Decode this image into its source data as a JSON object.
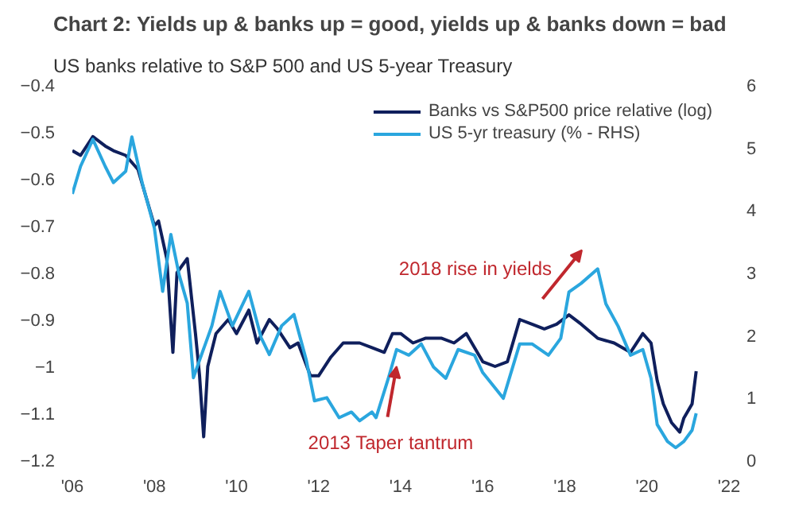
{
  "chart_data": {
    "type": "line",
    "title": "Chart 2: Yields up & banks up = good, yields up & banks down = bad",
    "subtitle": "US banks relative to S&P 500 and US 5-year Treasury",
    "xlim": [
      2006,
      2022
    ],
    "xticks": [
      {
        "value": 2006,
        "label": "'06"
      },
      {
        "value": 2008,
        "label": "'08"
      },
      {
        "value": 2010,
        "label": "'10"
      },
      {
        "value": 2012,
        "label": "'12"
      },
      {
        "value": 2014,
        "label": "'14"
      },
      {
        "value": 2016,
        "label": "'16"
      },
      {
        "value": 2018,
        "label": "'18"
      },
      {
        "value": 2020,
        "label": "'20"
      },
      {
        "value": 2022,
        "label": "'22"
      }
    ],
    "ylim": [
      -1.2,
      -0.4
    ],
    "yticks": [
      -1.2,
      -1.1,
      -1,
      -0.9,
      -0.8,
      -0.7,
      -0.6,
      -0.5,
      -0.4
    ],
    "y2lim": [
      0,
      6
    ],
    "y2ticks": [
      0,
      1,
      2,
      3,
      4,
      5,
      6
    ],
    "grid": false,
    "legend": "top right",
    "line_style": "solid",
    "marker": "none",
    "series": [
      {
        "name": "Banks vs S&P500 price relative (log)",
        "color": "#0f1f5c",
        "x": [
          2006.0,
          2006.2,
          2006.5,
          2006.8,
          2007.0,
          2007.3,
          2007.6,
          2007.8,
          2008.0,
          2008.1,
          2008.3,
          2008.45,
          2008.55,
          2008.8,
          2009.0,
          2009.1,
          2009.2,
          2009.3,
          2009.5,
          2009.8,
          2010.0,
          2010.3,
          2010.5,
          2010.8,
          2011.0,
          2011.3,
          2011.5,
          2011.8,
          2012.0,
          2012.3,
          2012.6,
          2013.0,
          2013.3,
          2013.6,
          2013.8,
          2014.0,
          2014.3,
          2014.6,
          2015.0,
          2015.3,
          2015.6,
          2016.0,
          2016.3,
          2016.6,
          2016.9,
          2017.2,
          2017.5,
          2017.8,
          2018.1,
          2018.4,
          2018.8,
          2019.2,
          2019.6,
          2019.9,
          2020.1,
          2020.25,
          2020.4,
          2020.6,
          2020.8,
          2020.9,
          2021.1,
          2021.2
        ],
        "values": [
          -0.54,
          -0.55,
          -0.51,
          -0.53,
          -0.54,
          -0.55,
          -0.58,
          -0.64,
          -0.7,
          -0.69,
          -0.77,
          -0.97,
          -0.8,
          -0.77,
          -0.93,
          -1.02,
          -1.15,
          -1.0,
          -0.93,
          -0.9,
          -0.93,
          -0.88,
          -0.95,
          -0.9,
          -0.92,
          -0.96,
          -0.95,
          -1.02,
          -1.02,
          -0.98,
          -0.95,
          -0.95,
          -0.96,
          -0.97,
          -0.93,
          -0.93,
          -0.95,
          -0.94,
          -0.94,
          -0.95,
          -0.93,
          -0.99,
          -1.0,
          -0.99,
          -0.9,
          -0.91,
          -0.92,
          -0.91,
          -0.89,
          -0.91,
          -0.94,
          -0.95,
          -0.97,
          -0.93,
          -0.95,
          -1.03,
          -1.08,
          -1.12,
          -1.14,
          -1.11,
          -1.08,
          -1.01
        ]
      },
      {
        "name": "US 5-yr treasury (% - RHS)",
        "color": "#2aa6de",
        "axis": "y2",
        "x": [
          2006.0,
          2006.2,
          2006.5,
          2006.8,
          2007.0,
          2007.3,
          2007.45,
          2007.7,
          2008.0,
          2008.2,
          2008.4,
          2008.6,
          2008.8,
          2008.95,
          2009.1,
          2009.4,
          2009.6,
          2009.9,
          2010.3,
          2010.6,
          2010.8,
          2011.1,
          2011.4,
          2011.7,
          2011.9,
          2012.2,
          2012.5,
          2012.8,
          2013.0,
          2013.3,
          2013.4,
          2013.7,
          2013.9,
          2014.2,
          2014.5,
          2014.8,
          2015.1,
          2015.4,
          2015.8,
          2016.0,
          2016.5,
          2016.9,
          2017.2,
          2017.6,
          2017.9,
          2018.1,
          2018.4,
          2018.8,
          2019.0,
          2019.3,
          2019.6,
          2019.9,
          2020.1,
          2020.25,
          2020.5,
          2020.7,
          2020.9,
          2021.1,
          2021.2
        ],
        "values": [
          4.26,
          4.7,
          5.13,
          4.7,
          4.44,
          4.62,
          5.17,
          4.44,
          3.71,
          2.7,
          3.61,
          2.97,
          2.51,
          1.32,
          1.6,
          2.15,
          2.7,
          2.15,
          2.7,
          1.96,
          1.69,
          2.15,
          2.33,
          1.6,
          0.95,
          1.0,
          0.68,
          0.77,
          0.63,
          0.77,
          0.68,
          1.31,
          1.77,
          1.68,
          1.86,
          1.49,
          1.31,
          1.77,
          1.68,
          1.4,
          0.99,
          1.86,
          1.86,
          1.68,
          1.95,
          2.69,
          2.83,
          3.06,
          2.5,
          2.14,
          1.68,
          1.77,
          1.31,
          0.57,
          0.3,
          0.2,
          0.3,
          0.48,
          0.75
        ]
      }
    ],
    "annotations": [
      "2018 rise in yields",
      {
        "text": "2013 Taper tantrum",
        "x": 2013.9,
        "y": -1.0
      }
    ]
  }
}
